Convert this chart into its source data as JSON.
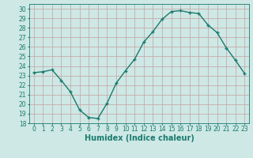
{
  "x": [
    0,
    1,
    2,
    3,
    4,
    5,
    6,
    7,
    8,
    9,
    10,
    11,
    12,
    13,
    14,
    15,
    16,
    17,
    18,
    19,
    20,
    21,
    22,
    23
  ],
  "y": [
    23.3,
    23.4,
    23.6,
    22.5,
    21.3,
    19.4,
    18.6,
    18.5,
    20.1,
    22.2,
    23.5,
    24.7,
    26.5,
    27.6,
    28.9,
    29.7,
    29.8,
    29.6,
    29.5,
    28.3,
    27.5,
    25.9,
    24.6,
    23.2
  ],
  "line_color": "#1a7a6e",
  "marker": "+",
  "bg_color": "#cde8e5",
  "grid_color_v": "#c8a0a0",
  "grid_color_h": "#c8a0a0",
  "xlabel": "Humidex (Indice chaleur)",
  "xlim": [
    -0.5,
    23.5
  ],
  "ylim": [
    18,
    30.5
  ],
  "yticks": [
    18,
    19,
    20,
    21,
    22,
    23,
    24,
    25,
    26,
    27,
    28,
    29,
    30
  ],
  "xticks": [
    0,
    1,
    2,
    3,
    4,
    5,
    6,
    7,
    8,
    9,
    10,
    11,
    12,
    13,
    14,
    15,
    16,
    17,
    18,
    19,
    20,
    21,
    22,
    23
  ],
  "xlabel_fontsize": 7,
  "tick_fontsize": 5.5,
  "linewidth": 1.0,
  "markersize": 3.5,
  "markeredgewidth": 1.0
}
